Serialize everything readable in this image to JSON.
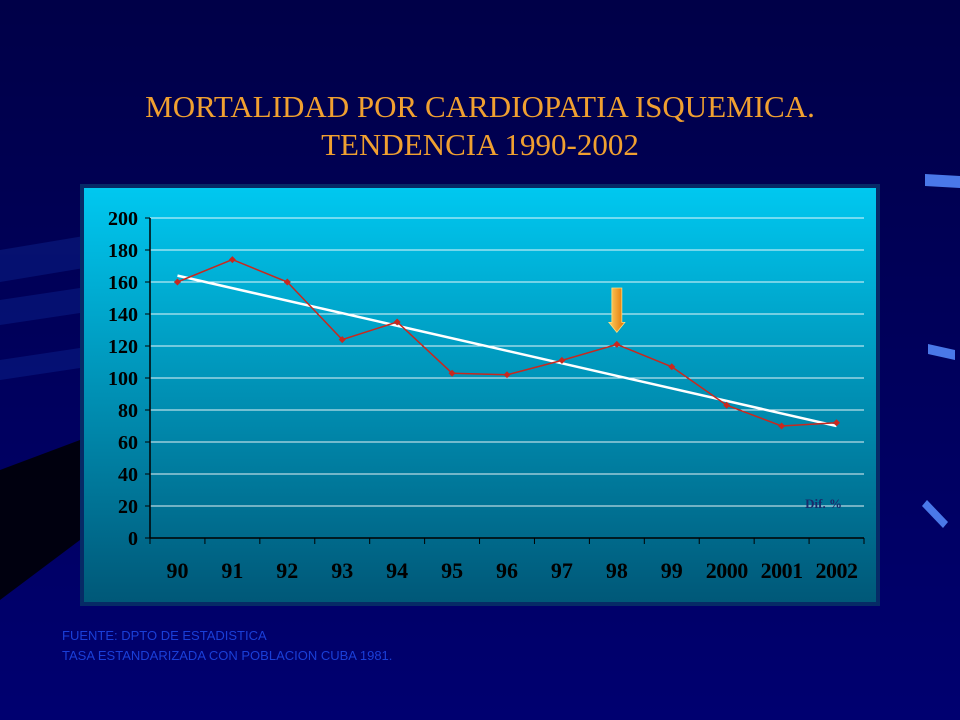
{
  "slide": {
    "title_line_1": "MORTALIDAD POR CARDIOPATIA ISQUEMICA.",
    "title_line_2": "TENDENCIA 1990-2002",
    "footnote_1": "FUENTE: DPTO DE ESTADISTICA",
    "footnote_2": "TASA ESTANDARIZADA CON POBLACION CUBA 1981."
  },
  "colors": {
    "title": "#f0a030",
    "chart_bg_top": "#00c8f0",
    "chart_bg_bottom": "#005878",
    "series_line": "#c8281e",
    "trend_line": "#ffffff",
    "arrow": "#f7a010"
  },
  "chart_data": {
    "type": "line",
    "categories": [
      "90",
      "91",
      "92",
      "93",
      "94",
      "95",
      "96",
      "97",
      "98",
      "99",
      "2000",
      "2001",
      "2002"
    ],
    "series": [
      {
        "values": [
          160,
          174,
          160,
          124,
          135,
          103,
          102,
          111,
          121,
          107,
          83,
          70,
          72
        ]
      }
    ],
    "trendline": {
      "start": 164,
      "end": 70
    },
    "ylim": [
      0,
      200
    ],
    "yticks": [
      0,
      20,
      40,
      60,
      80,
      100,
      120,
      140,
      160,
      180,
      200
    ],
    "grid": true,
    "annotation": {
      "text": "Dif. %"
    },
    "highlight_category": "98",
    "highlight_icon": "down-arrow-icon"
  }
}
